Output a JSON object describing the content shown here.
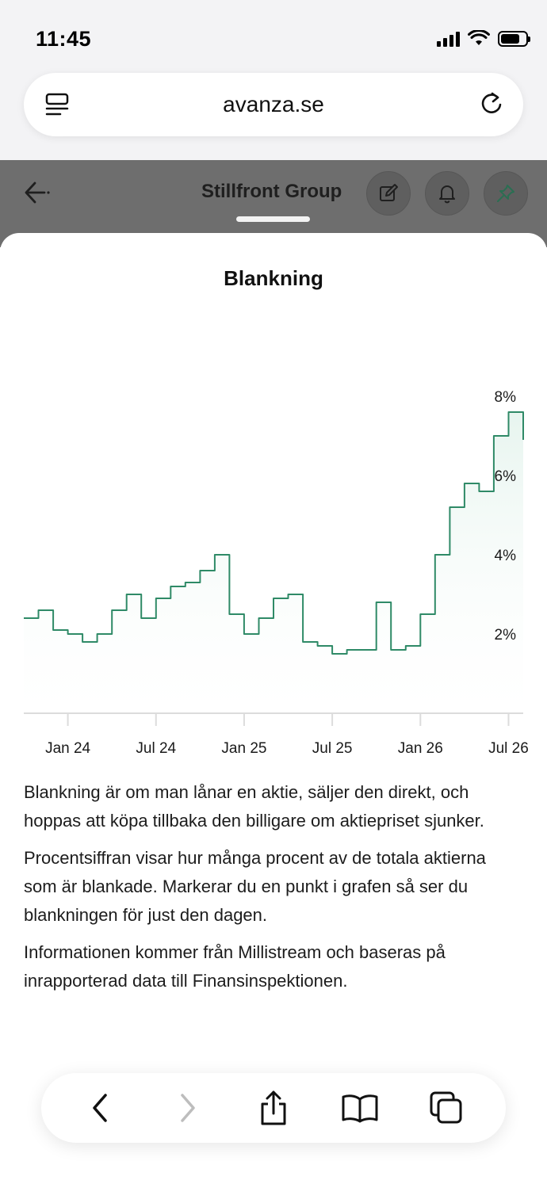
{
  "status_bar": {
    "time": "11:45"
  },
  "browser": {
    "url": "avanza.se"
  },
  "page_header": {
    "title": "Stillfront Group"
  },
  "sheet": {
    "title": "Blankning",
    "description": [
      "Blankning är om man lånar en aktie, säljer den direkt, och hoppas att köpa tillbaka den billigare om aktiepriset sjunker.",
      "Procentsiffran visar hur många procent av de totala aktierna som är blankade. Markerar du en punkt i grafen så ser du blankningen för just den dagen.",
      "Informationen kommer från Millistream och baseras på inrapporterad data till Finansinspektionen."
    ]
  },
  "chart_data": {
    "type": "area",
    "title": "Blankning",
    "x_ticks": [
      "Jan 24",
      "Jul 24",
      "Jan 25",
      "Jul 25",
      "Jan 26",
      "Jul 26"
    ],
    "y_ticks": [
      "2%",
      "4%",
      "6%",
      "8%"
    ],
    "ylim": [
      0,
      8
    ],
    "x_range": [
      "2023-10",
      "2026-08"
    ],
    "grid": false,
    "line_color": "#2f8a67",
    "fill_color": "#e6f4ee",
    "series": [
      {
        "x": [
          "2023-10",
          "2023-11",
          "2023-12",
          "2024-01",
          "2024-02",
          "2024-03",
          "2024-04",
          "2024-05",
          "2024-06",
          "2024-07",
          "2024-08",
          "2024-09",
          "2024-10",
          "2024-11",
          "2024-12",
          "2025-01",
          "2025-02",
          "2025-03",
          "2025-04",
          "2025-05",
          "2025-06",
          "2025-07",
          "2025-08",
          "2025-09",
          "2025-10",
          "2025-11",
          "2025-12",
          "2026-01",
          "2026-02",
          "2026-03",
          "2026-04",
          "2026-05",
          "2026-06",
          "2026-07",
          "2026-08"
        ],
        "values": [
          2.4,
          2.6,
          2.1,
          2.0,
          1.8,
          2.0,
          2.6,
          3.0,
          2.4,
          2.9,
          3.2,
          3.3,
          3.6,
          4.0,
          2.5,
          2.0,
          2.4,
          2.9,
          3.0,
          1.8,
          1.7,
          1.5,
          1.6,
          1.6,
          2.8,
          1.6,
          1.7,
          2.5,
          4.0,
          5.2,
          5.8,
          5.6,
          7.0,
          7.6,
          6.9
        ]
      }
    ]
  }
}
